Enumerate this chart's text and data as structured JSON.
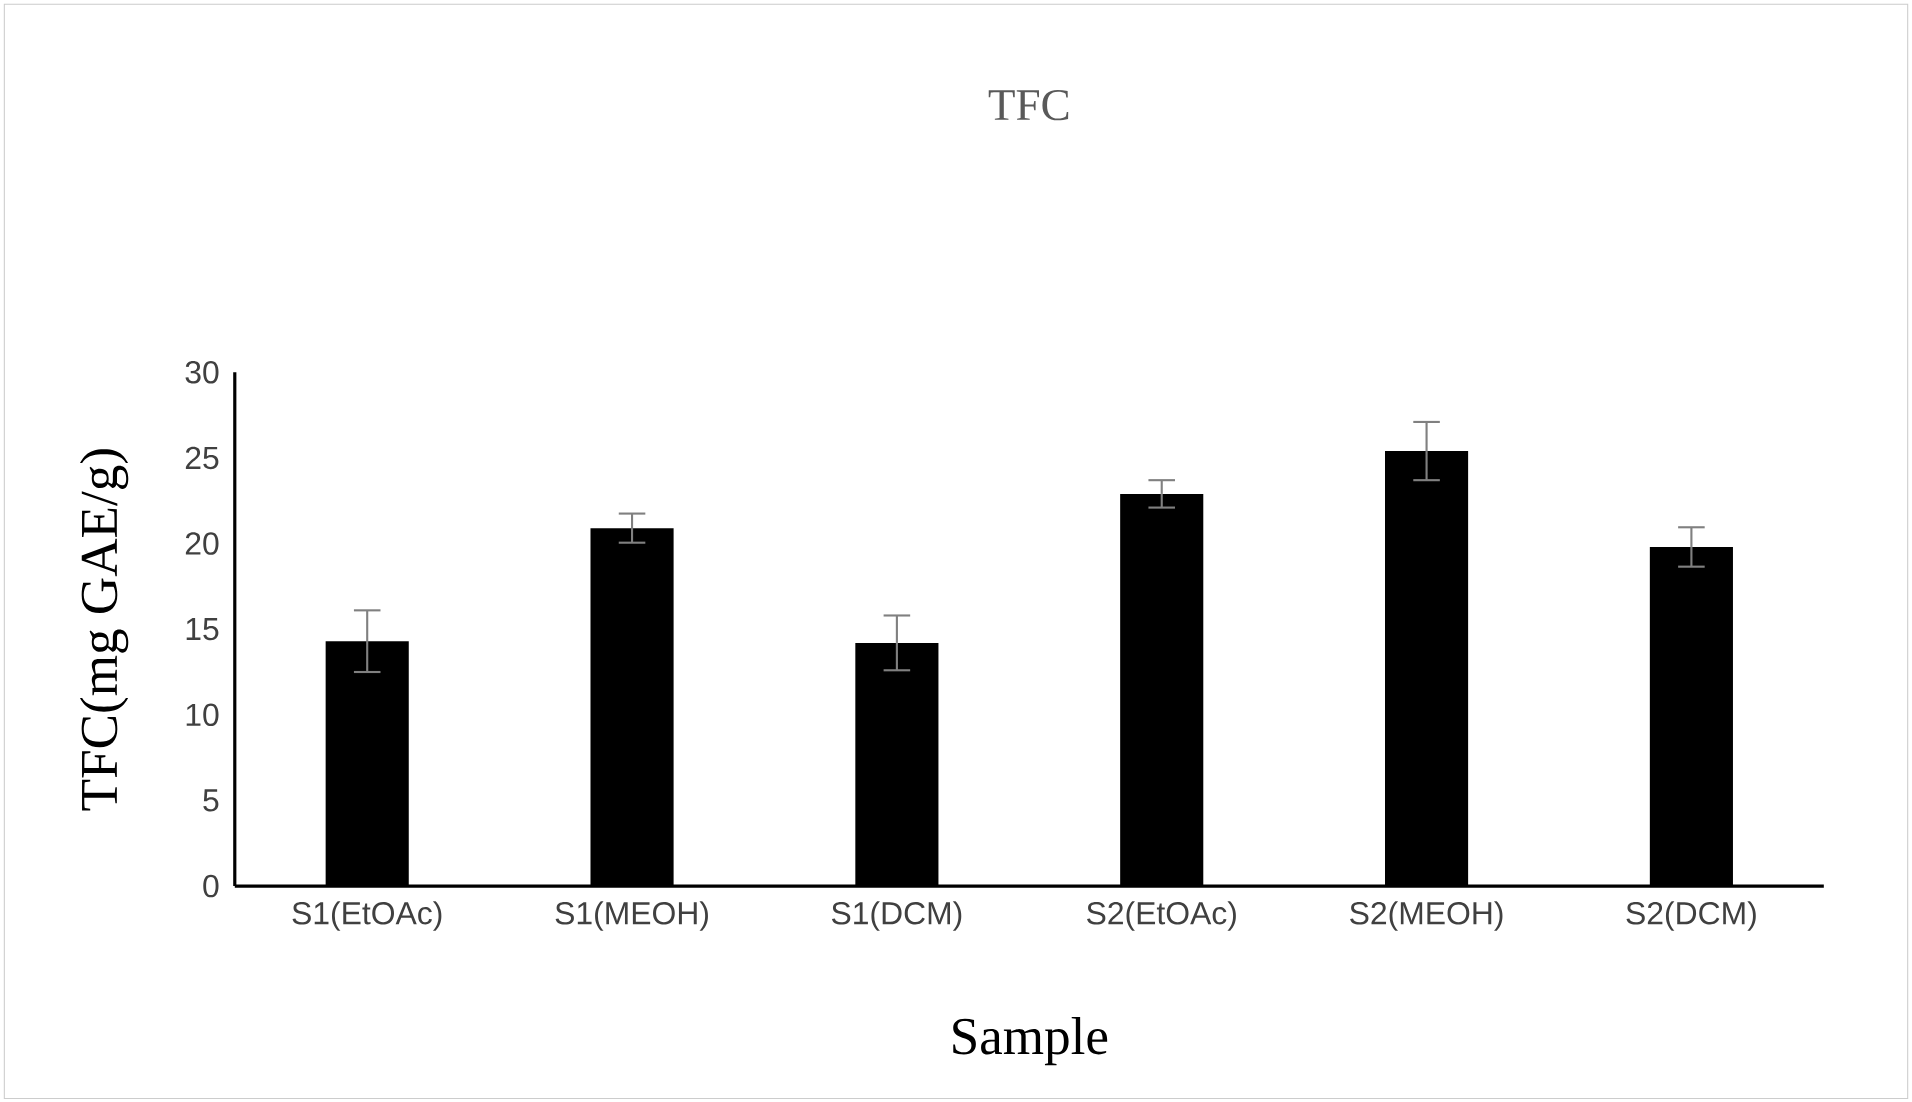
{
  "chart_data": {
    "type": "bar",
    "title": "TFC",
    "xlabel": "Sample",
    "ylabel": "TFC(mg GAE/g)",
    "categories": [
      "S1(EtOAc)",
      "S1(MEOH)",
      "S1(DCM)",
      "S2(EtOAc)",
      "S2(MEOH)",
      "S2(DCM)"
    ],
    "values": [
      14.3,
      20.9,
      14.2,
      22.9,
      25.4,
      19.8
    ],
    "errors": [
      1.8,
      0.85,
      1.6,
      0.8,
      1.7,
      1.15
    ],
    "color": "#000000",
    "ylim": [
      0,
      30
    ],
    "yticks": [
      0,
      5,
      10,
      15,
      20,
      25,
      30
    ],
    "grid": false
  }
}
